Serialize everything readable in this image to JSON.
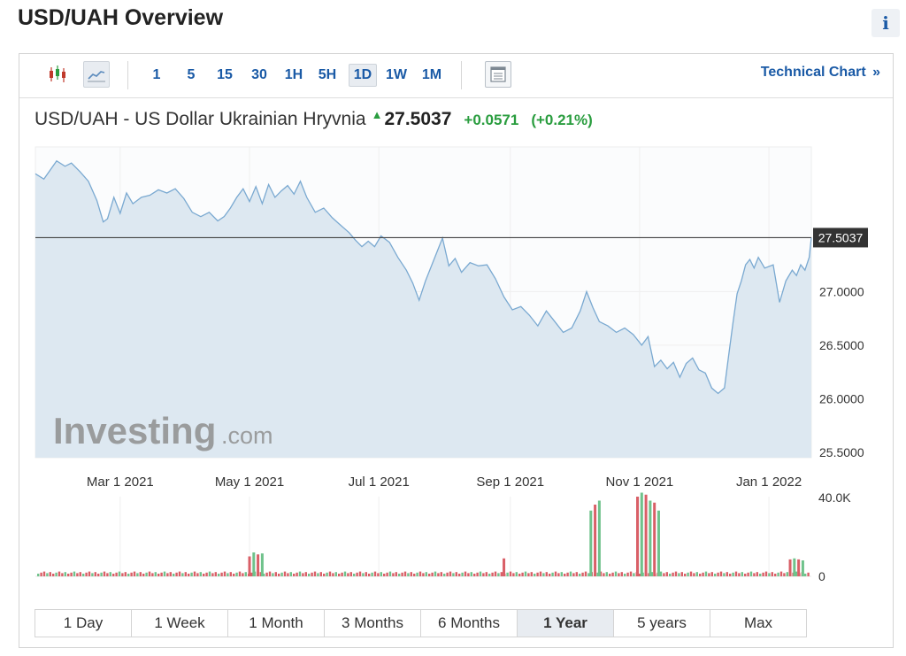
{
  "page": {
    "title": "USD/UAH Overview",
    "info_label": "i"
  },
  "toolbar": {
    "chart_types": [
      {
        "name": "candlestick-icon",
        "active": false
      },
      {
        "name": "line-chart-icon",
        "active": true
      }
    ],
    "timeframes": [
      {
        "label": "1",
        "active": false
      },
      {
        "label": "5",
        "active": false
      },
      {
        "label": "15",
        "active": false
      },
      {
        "label": "30",
        "active": false
      },
      {
        "label": "1H",
        "active": false
      },
      {
        "label": "5H",
        "active": false
      },
      {
        "label": "1D",
        "active": true
      },
      {
        "label": "1W",
        "active": false
      },
      {
        "label": "1M",
        "active": false
      }
    ],
    "table_icon": "table-icon",
    "technical_chart_label": "Technical Chart",
    "technical_chart_arrow": "»"
  },
  "quote": {
    "name": "USD/UAH - US Dollar Ukrainian Hryvnia",
    "direction_icon": "up-arrow-icon",
    "price": "27.5037",
    "change": "+0.0571",
    "change_pct": "(+0.21%)",
    "up_color": "#2a9d3f"
  },
  "chart_data": {
    "type": "area",
    "x_labels": [
      "Mar 1 2021",
      "May 1 2021",
      "Jul 1 2021",
      "Sep 1 2021",
      "Nov 1 2021",
      "Jan 1 2022"
    ],
    "x_range": [
      "2021-01-20",
      "2022-01-21"
    ],
    "y_ticks": [
      "27.0000",
      "26.5000",
      "26.0000",
      "25.5000"
    ],
    "ylim": [
      25.45,
      28.35
    ],
    "current_label": "27.5037",
    "current_value": 27.5037,
    "series": [
      {
        "x": "2021-01-20",
        "y": 28.1
      },
      {
        "x": "2021-01-24",
        "y": 28.05
      },
      {
        "x": "2021-01-30",
        "y": 28.22
      },
      {
        "x": "2021-02-03",
        "y": 28.17
      },
      {
        "x": "2021-02-06",
        "y": 28.2
      },
      {
        "x": "2021-02-10",
        "y": 28.12
      },
      {
        "x": "2021-02-14",
        "y": 28.03
      },
      {
        "x": "2021-02-18",
        "y": 27.85
      },
      {
        "x": "2021-02-21",
        "y": 27.65
      },
      {
        "x": "2021-02-23",
        "y": 27.68
      },
      {
        "x": "2021-02-26",
        "y": 27.88
      },
      {
        "x": "2021-03-01",
        "y": 27.73
      },
      {
        "x": "2021-03-04",
        "y": 27.92
      },
      {
        "x": "2021-03-07",
        "y": 27.82
      },
      {
        "x": "2021-03-11",
        "y": 27.88
      },
      {
        "x": "2021-03-15",
        "y": 27.9
      },
      {
        "x": "2021-03-19",
        "y": 27.95
      },
      {
        "x": "2021-03-23",
        "y": 27.92
      },
      {
        "x": "2021-03-27",
        "y": 27.96
      },
      {
        "x": "2021-03-31",
        "y": 27.87
      },
      {
        "x": "2021-04-04",
        "y": 27.74
      },
      {
        "x": "2021-04-08",
        "y": 27.7
      },
      {
        "x": "2021-04-12",
        "y": 27.74
      },
      {
        "x": "2021-04-16",
        "y": 27.66
      },
      {
        "x": "2021-04-19",
        "y": 27.7
      },
      {
        "x": "2021-04-22",
        "y": 27.78
      },
      {
        "x": "2021-04-25",
        "y": 27.88
      },
      {
        "x": "2021-04-28",
        "y": 27.96
      },
      {
        "x": "2021-05-01",
        "y": 27.84
      },
      {
        "x": "2021-05-04",
        "y": 27.98
      },
      {
        "x": "2021-05-07",
        "y": 27.82
      },
      {
        "x": "2021-05-10",
        "y": 28.0
      },
      {
        "x": "2021-05-13",
        "y": 27.88
      },
      {
        "x": "2021-05-16",
        "y": 27.94
      },
      {
        "x": "2021-05-19",
        "y": 27.99
      },
      {
        "x": "2021-05-22",
        "y": 27.91
      },
      {
        "x": "2021-05-25",
        "y": 28.03
      },
      {
        "x": "2021-05-28",
        "y": 27.88
      },
      {
        "x": "2021-06-01",
        "y": 27.74
      },
      {
        "x": "2021-06-05",
        "y": 27.78
      },
      {
        "x": "2021-06-09",
        "y": 27.69
      },
      {
        "x": "2021-06-13",
        "y": 27.62
      },
      {
        "x": "2021-06-17",
        "y": 27.55
      },
      {
        "x": "2021-06-20",
        "y": 27.48
      },
      {
        "x": "2021-06-23",
        "y": 27.42
      },
      {
        "x": "2021-06-26",
        "y": 27.47
      },
      {
        "x": "2021-06-29",
        "y": 27.42
      },
      {
        "x": "2021-07-02",
        "y": 27.52
      },
      {
        "x": "2021-07-06",
        "y": 27.46
      },
      {
        "x": "2021-07-10",
        "y": 27.32
      },
      {
        "x": "2021-07-14",
        "y": 27.2
      },
      {
        "x": "2021-07-17",
        "y": 27.08
      },
      {
        "x": "2021-07-20",
        "y": 26.92
      },
      {
        "x": "2021-07-23",
        "y": 27.1
      },
      {
        "x": "2021-07-27",
        "y": 27.3
      },
      {
        "x": "2021-07-31",
        "y": 27.5
      },
      {
        "x": "2021-08-03",
        "y": 27.24
      },
      {
        "x": "2021-08-06",
        "y": 27.31
      },
      {
        "x": "2021-08-09",
        "y": 27.18
      },
      {
        "x": "2021-08-13",
        "y": 27.27
      },
      {
        "x": "2021-08-17",
        "y": 27.24
      },
      {
        "x": "2021-08-21",
        "y": 27.25
      },
      {
        "x": "2021-08-25",
        "y": 27.12
      },
      {
        "x": "2021-08-29",
        "y": 26.95
      },
      {
        "x": "2021-09-02",
        "y": 26.83
      },
      {
        "x": "2021-09-06",
        "y": 26.86
      },
      {
        "x": "2021-09-10",
        "y": 26.78
      },
      {
        "x": "2021-09-14",
        "y": 26.68
      },
      {
        "x": "2021-09-18",
        "y": 26.82
      },
      {
        "x": "2021-09-22",
        "y": 26.72
      },
      {
        "x": "2021-09-26",
        "y": 26.62
      },
      {
        "x": "2021-09-30",
        "y": 26.66
      },
      {
        "x": "2021-10-04",
        "y": 26.82
      },
      {
        "x": "2021-10-07",
        "y": 27.0
      },
      {
        "x": "2021-10-10",
        "y": 26.85
      },
      {
        "x": "2021-10-13",
        "y": 26.72
      },
      {
        "x": "2021-10-17",
        "y": 26.68
      },
      {
        "x": "2021-10-21",
        "y": 26.62
      },
      {
        "x": "2021-10-25",
        "y": 26.66
      },
      {
        "x": "2021-10-29",
        "y": 26.6
      },
      {
        "x": "2021-11-02",
        "y": 26.5
      },
      {
        "x": "2021-11-05",
        "y": 26.58
      },
      {
        "x": "2021-11-08",
        "y": 26.3
      },
      {
        "x": "2021-11-11",
        "y": 26.36
      },
      {
        "x": "2021-11-14",
        "y": 26.28
      },
      {
        "x": "2021-11-17",
        "y": 26.34
      },
      {
        "x": "2021-11-20",
        "y": 26.2
      },
      {
        "x": "2021-11-23",
        "y": 26.33
      },
      {
        "x": "2021-11-26",
        "y": 26.38
      },
      {
        "x": "2021-11-29",
        "y": 26.27
      },
      {
        "x": "2021-12-02",
        "y": 26.24
      },
      {
        "x": "2021-12-05",
        "y": 26.1
      },
      {
        "x": "2021-12-08",
        "y": 26.05
      },
      {
        "x": "2021-12-11",
        "y": 26.1
      },
      {
        "x": "2021-12-13",
        "y": 26.4
      },
      {
        "x": "2021-12-15",
        "y": 26.7
      },
      {
        "x": "2021-12-17",
        "y": 26.98
      },
      {
        "x": "2021-12-19",
        "y": 27.1
      },
      {
        "x": "2021-12-21",
        "y": 27.25
      },
      {
        "x": "2021-12-23",
        "y": 27.3
      },
      {
        "x": "2021-12-25",
        "y": 27.22
      },
      {
        "x": "2021-12-27",
        "y": 27.32
      },
      {
        "x": "2021-12-30",
        "y": 27.22
      },
      {
        "x": "2022-01-03",
        "y": 27.25
      },
      {
        "x": "2022-01-06",
        "y": 26.9
      },
      {
        "x": "2022-01-09",
        "y": 27.1
      },
      {
        "x": "2022-01-12",
        "y": 27.2
      },
      {
        "x": "2022-01-14",
        "y": 27.15
      },
      {
        "x": "2022-01-16",
        "y": 27.25
      },
      {
        "x": "2022-01-18",
        "y": 27.2
      },
      {
        "x": "2022-01-20",
        "y": 27.32
      },
      {
        "x": "2022-01-21",
        "y": 27.5037
      }
    ],
    "line_color": "#7aa9d1",
    "fill_color": "#dde8f1",
    "volume": {
      "max_label": "40.0K",
      "zero_label": "0",
      "max": 40000,
      "up_color": "#6fc28b",
      "down_color": "#d95f67",
      "spikes": [
        {
          "x": "2021-05-01",
          "y": 10000
        },
        {
          "x": "2021-05-03",
          "y": 12000
        },
        {
          "x": "2021-05-05",
          "y": 11000
        },
        {
          "x": "2021-05-07",
          "y": 11500
        },
        {
          "x": "2021-08-29",
          "y": 9000
        },
        {
          "x": "2021-10-09",
          "y": 33000
        },
        {
          "x": "2021-10-11",
          "y": 36000
        },
        {
          "x": "2021-10-13",
          "y": 38000
        },
        {
          "x": "2021-10-31",
          "y": 40000
        },
        {
          "x": "2021-11-02",
          "y": 42000
        },
        {
          "x": "2021-11-04",
          "y": 41000
        },
        {
          "x": "2021-11-06",
          "y": 38000
        },
        {
          "x": "2021-11-08",
          "y": 37000
        },
        {
          "x": "2021-11-10",
          "y": 33000
        },
        {
          "x": "2022-01-11",
          "y": 8500
        },
        {
          "x": "2022-01-13",
          "y": 9000
        },
        {
          "x": "2022-01-15",
          "y": 8500
        },
        {
          "x": "2022-01-17",
          "y": 8000
        }
      ]
    }
  },
  "watermark": {
    "brand": "Investing",
    "suffix": ".com"
  },
  "ranges": [
    {
      "label": "1 Day",
      "active": false
    },
    {
      "label": "1 Week",
      "active": false
    },
    {
      "label": "1 Month",
      "active": false
    },
    {
      "label": "3 Months",
      "active": false
    },
    {
      "label": "6 Months",
      "active": false
    },
    {
      "label": "1 Year",
      "active": true
    },
    {
      "label": "5 years",
      "active": false
    },
    {
      "label": "Max",
      "active": false
    }
  ]
}
